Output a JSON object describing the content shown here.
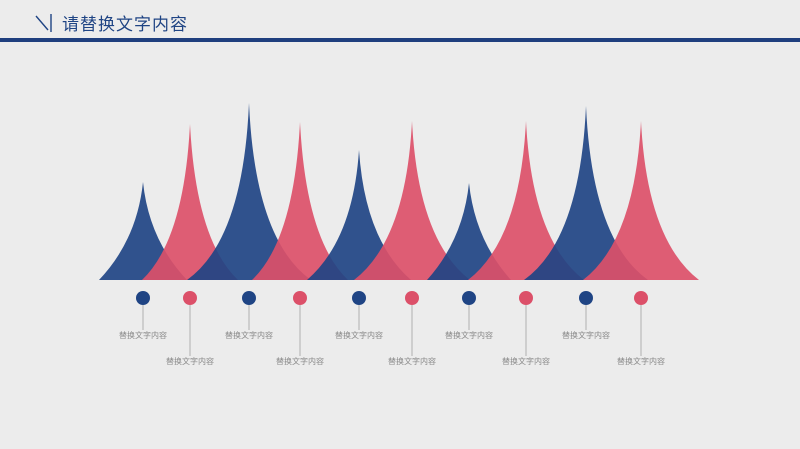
{
  "header": {
    "title": "请替换文字内容",
    "icon": "slash-corner-icon",
    "color": "#1f4484"
  },
  "colors": {
    "blue": "#1f4484",
    "pink": "#dc5069",
    "background": "#ececec",
    "label": "#8a8a8a"
  },
  "peaks": [
    {
      "color": "blue",
      "label": "替换文字内容"
    },
    {
      "color": "pink",
      "label": "替换文字内容"
    },
    {
      "color": "blue",
      "label": "替换文字内容"
    },
    {
      "color": "pink",
      "label": "替换文字内容"
    },
    {
      "color": "blue",
      "label": "替换文字内容"
    },
    {
      "color": "pink",
      "label": "替换文字内容"
    },
    {
      "color": "blue",
      "label": "替换文字内容"
    },
    {
      "color": "pink",
      "label": "替换文字内容"
    },
    {
      "color": "blue",
      "label": "替换文字内容"
    },
    {
      "color": "pink",
      "label": "替换文字内容"
    }
  ]
}
